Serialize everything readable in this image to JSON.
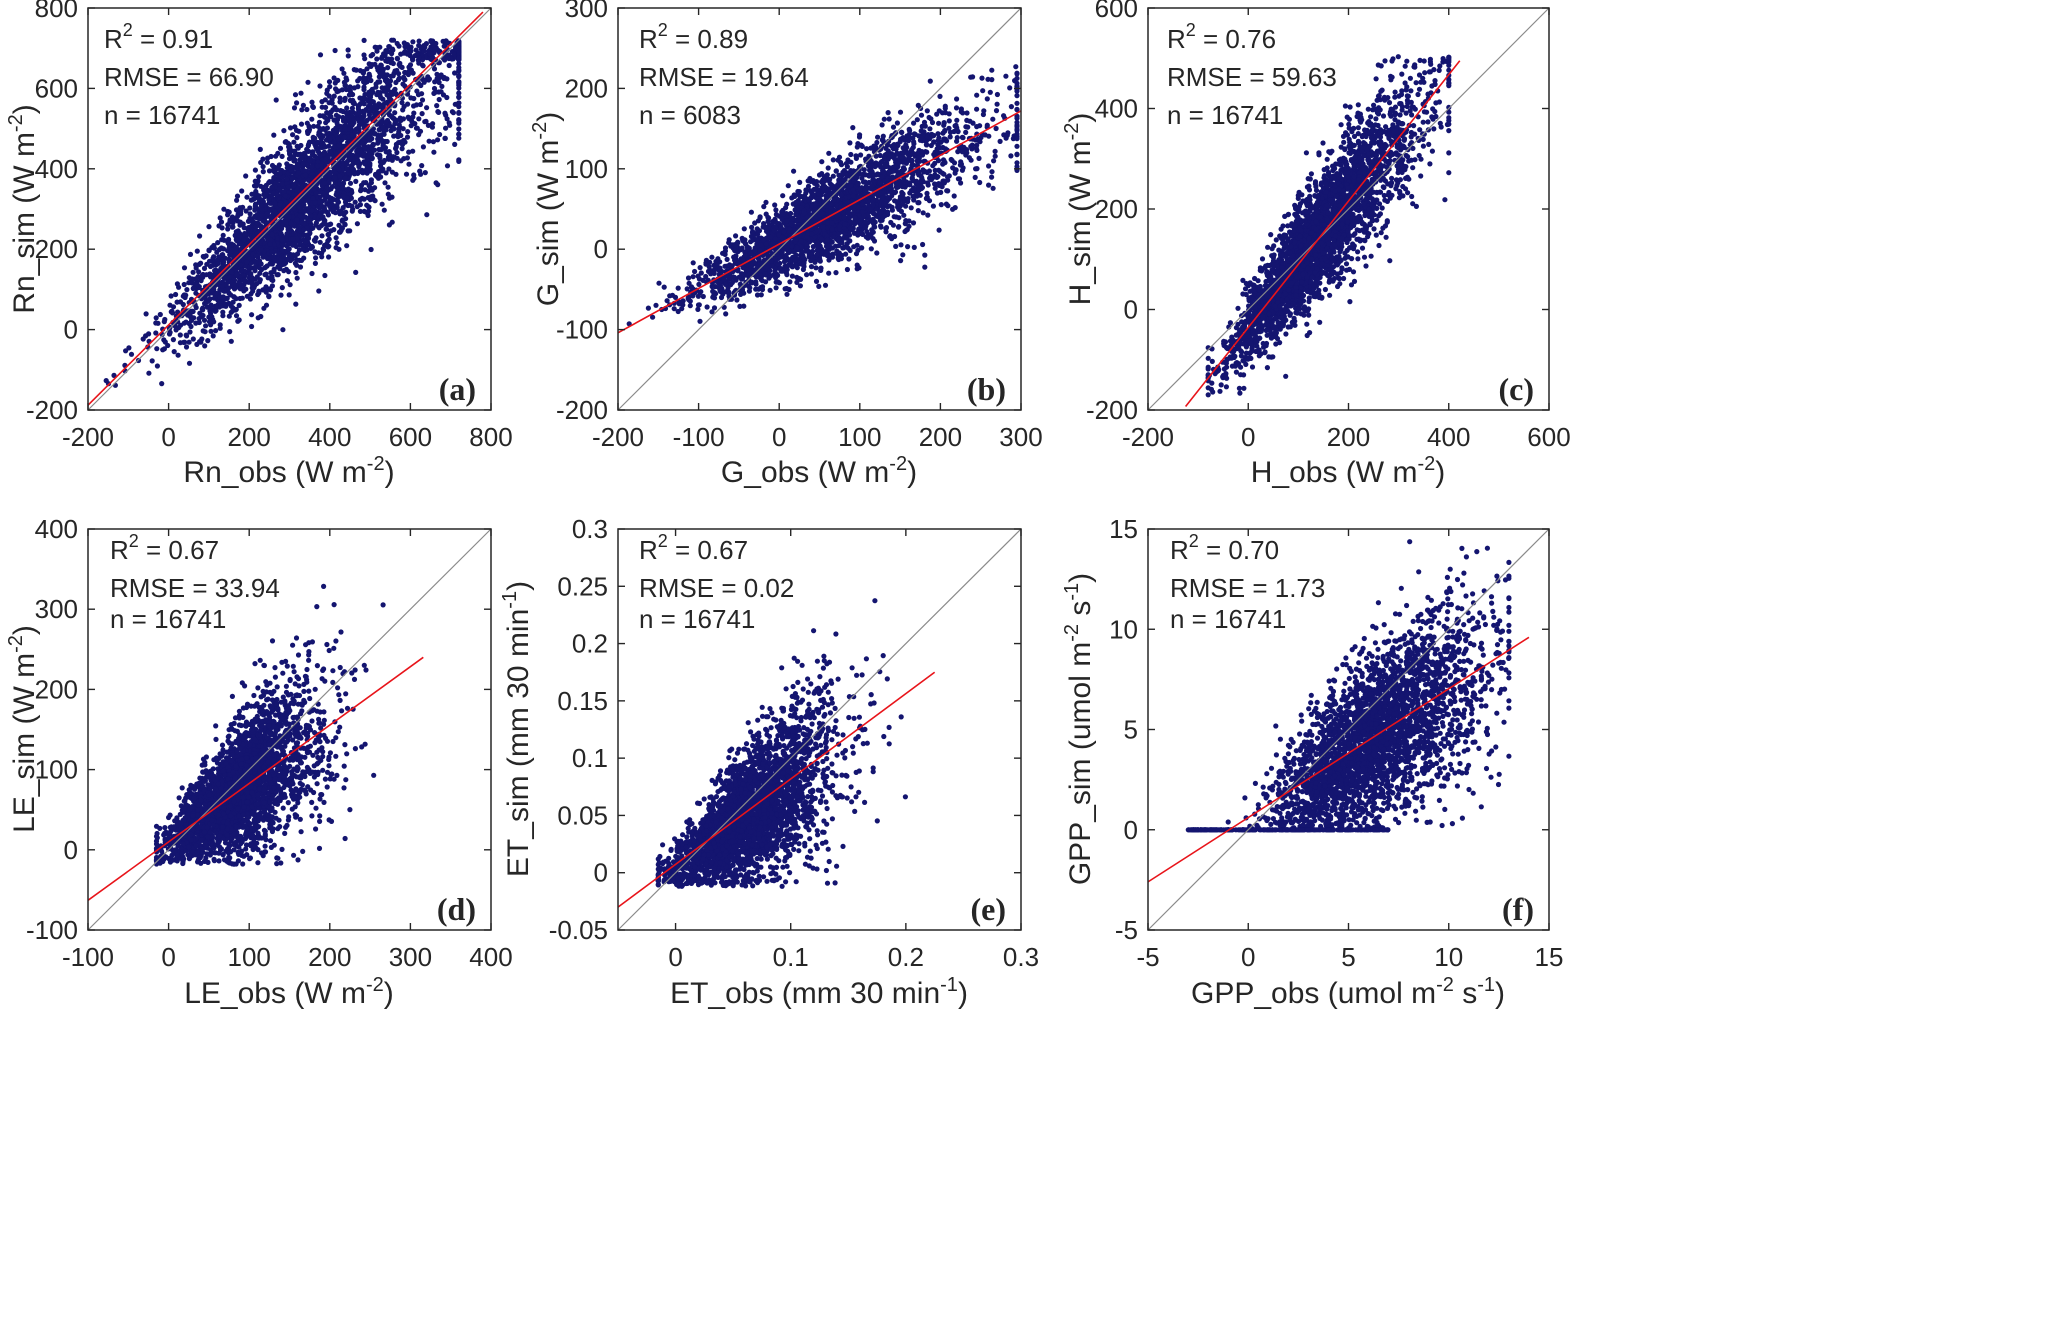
{
  "figure": {
    "colors": {
      "points": "#141570",
      "fit_line": "#e8141a",
      "one_to_one_line": "#8a8a8a",
      "axes": "#262626"
    }
  },
  "chart_data": [
    {
      "type": "scatter",
      "panel_label": "(a)",
      "xlabel": {
        "main": "Rn_obs (W m",
        "sup": "-2",
        "tail": ")"
      },
      "ylabel": {
        "main": "Rn_sim (W m",
        "sup": "-2",
        "tail": ")"
      },
      "xlim": [
        -200,
        800
      ],
      "ylim": [
        -200,
        800
      ],
      "xticks": [
        -200,
        0,
        200,
        400,
        600,
        800
      ],
      "yticks": [
        -200,
        0,
        200,
        400,
        600,
        800
      ],
      "xtick_labels": [
        "-200",
        "0",
        "200",
        "400",
        "600",
        "800"
      ],
      "ytick_labels": [
        "-200",
        "0",
        "200",
        "400",
        "600",
        "800"
      ],
      "stats": {
        "r2_label": "R",
        "r2_sup": "2",
        "r2_value": " = 0.91",
        "rmse": "RMSE = 66.90",
        "n": "n = 16741"
      },
      "fit_line": {
        "x": [
          -200,
          780
        ],
        "y": [
          -188,
          790
        ]
      },
      "one_to_one": [
        -200,
        800
      ],
      "cloud": {
        "count": 3200,
        "seed": 11,
        "x_range": [
          -180,
          720
        ],
        "x_center": 250,
        "x_spread": 220,
        "slope": 0.99,
        "intercept": 6,
        "noise_base": 25,
        "noise_scale": 0.12,
        "clip_y": [
          -150,
          720
        ]
      }
    },
    {
      "type": "scatter",
      "panel_label": "(b)",
      "xlabel": {
        "main": "G_obs (W m",
        "sup": "-2",
        "tail": ")"
      },
      "ylabel": {
        "main": "G_sim (W m",
        "sup": "-2",
        "tail": ")"
      },
      "xlim": [
        -200,
        300
      ],
      "ylim": [
        -200,
        300
      ],
      "xticks": [
        -200,
        -100,
        0,
        100,
        200,
        300
      ],
      "yticks": [
        -200,
        -100,
        0,
        100,
        200,
        300
      ],
      "xtick_labels": [
        "-200",
        "-100",
        "0",
        "100",
        "200",
        "300"
      ],
      "ytick_labels": [
        "-200",
        "-100",
        "0",
        "100",
        "200",
        "300"
      ],
      "stats": {
        "r2_label": "R",
        "r2_sup": "2",
        "r2_value": " = 0.89",
        "rmse": "RMSE = 19.64",
        "n": "n = 6083"
      },
      "fit_line": {
        "x": [
          -200,
          300
        ],
        "y": [
          -104,
          172
        ]
      },
      "one_to_one": [
        -200,
        300
      ],
      "cloud": {
        "count": 2600,
        "seed": 23,
        "x_range": [
          -195,
          295
        ],
        "x_center": 20,
        "x_spread": 110,
        "slope": 0.55,
        "intercept": 6,
        "noise_base": 12,
        "noise_scale": 0.06,
        "clip_y": [
          -150,
          235
        ]
      }
    },
    {
      "type": "scatter",
      "panel_label": "(c)",
      "xlabel": {
        "main": "H_obs (W m",
        "sup": "-2",
        "tail": ")"
      },
      "ylabel": {
        "main": "H_sim (W m",
        "sup": "-2",
        "tail": ")"
      },
      "xlim": [
        -200,
        600
      ],
      "ylim": [
        -200,
        600
      ],
      "xticks": [
        -200,
        0,
        200,
        400,
        600
      ],
      "yticks": [
        -200,
        0,
        200,
        400,
        600
      ],
      "xtick_labels": [
        "-200",
        "0",
        "200",
        "400",
        "600"
      ],
      "ytick_labels": [
        "-200",
        "0",
        "200",
        "400",
        "600"
      ],
      "stats": {
        "r2_label": "R",
        "r2_sup": "2",
        "r2_value": " = 0.76",
        "rmse": "RMSE = 59.63",
        "n": "n = 16741"
      },
      "fit_line": {
        "x": [
          -125,
          422
        ],
        "y": [
          -193,
          495
        ]
      },
      "one_to_one": [
        -200,
        600
      ],
      "cloud": {
        "count": 3200,
        "seed": 37,
        "x_range": [
          -80,
          400
        ],
        "x_center": 90,
        "x_spread": 120,
        "slope": 1.26,
        "intercept": -35,
        "noise_base": 30,
        "noise_scale": 0.12,
        "clip_y": [
          -180,
          505
        ]
      }
    },
    {
      "type": "scatter",
      "panel_label": "(d)",
      "xlabel": {
        "main": "LE_obs (W m",
        "sup": "-2",
        "tail": ")"
      },
      "ylabel": {
        "main": "LE_sim (W m",
        "sup": "-2",
        "tail": ")"
      },
      "xlim": [
        -100,
        400
      ],
      "ylim": [
        -100,
        400
      ],
      "xticks": [
        -100,
        0,
        100,
        200,
        300,
        400
      ],
      "yticks": [
        -100,
        0,
        100,
        200,
        300,
        400
      ],
      "xtick_labels": [
        "-100",
        "0",
        "100",
        "200",
        "300",
        "400"
      ],
      "ytick_labels": [
        "-100",
        "0",
        "100",
        "200",
        "300",
        "400"
      ],
      "stats": {
        "r2_label": "R",
        "r2_sup": "2",
        "r2_value": " = 0.67",
        "rmse": "RMSE = 33.94",
        "n": "n = 16741"
      },
      "fit_line": {
        "x": [
          -100,
          316
        ],
        "y": [
          -63,
          240
        ]
      },
      "one_to_one": [
        -100,
        400
      ],
      "cloud": {
        "count": 3000,
        "seed": 53,
        "x_range": [
          -15,
          300
        ],
        "x_center": 60,
        "x_spread": 60,
        "slope": 0.73,
        "intercept": 10,
        "noise_base": 12,
        "noise_scale": 0.25,
        "clip_y": [
          -18,
          400
        ]
      }
    },
    {
      "type": "scatter",
      "panel_label": "(e)",
      "xlabel": {
        "main": "ET_obs (mm 30 min",
        "sup": "-1",
        "tail": ")"
      },
      "ylabel": {
        "main": "ET_sim (mm 30 min",
        "sup": "-1",
        "tail": ")"
      },
      "xlim": [
        -0.05,
        0.3
      ],
      "ylim": [
        -0.05,
        0.3
      ],
      "xticks": [
        0,
        0.1,
        0.2,
        0.3
      ],
      "yticks": [
        -0.05,
        0,
        0.05,
        0.1,
        0.15,
        0.2,
        0.25,
        0.3
      ],
      "xtick_labels": [
        "0",
        "0.1",
        "0.2",
        "0.3"
      ],
      "ytick_labels": [
        "-0.05",
        "0",
        "0.05",
        "0.1",
        "0.15",
        "0.2",
        "0.25",
        "0.3"
      ],
      "stats": {
        "r2_label": "R",
        "r2_sup": "2",
        "r2_value": " = 0.67",
        "rmse": "RMSE = 0.02",
        "n": "n = 16741"
      },
      "fit_line": {
        "x": [
          -0.05,
          0.225
        ],
        "y": [
          -0.03,
          0.175
        ]
      },
      "one_to_one": [
        -0.05,
        0.3
      ],
      "cloud": {
        "count": 3000,
        "seed": 71,
        "x_range": [
          -0.015,
          0.21
        ],
        "x_center": 0.045,
        "x_spread": 0.045,
        "slope": 0.73,
        "intercept": 0.005,
        "noise_base": 0.008,
        "noise_scale": 0.25,
        "clip_y": [
          -0.012,
          0.298
        ]
      }
    },
    {
      "type": "scatter",
      "panel_label": "(f)",
      "xlabel": {
        "main": "GPP_obs (umol m",
        "sup": "-2",
        "tail": " s",
        "sup2": "-1",
        "tail2": ")"
      },
      "ylabel": {
        "main": "GPP_sim (umol m",
        "sup": "-2",
        "tail": " s",
        "sup2": "-1",
        "tail2": ")"
      },
      "xlim": [
        -5,
        15
      ],
      "ylim": [
        -5,
        15
      ],
      "xticks": [
        -5,
        0,
        5,
        10,
        15
      ],
      "yticks": [
        -5,
        0,
        5,
        10,
        15
      ],
      "xtick_labels": [
        "-5",
        "0",
        "5",
        "10",
        "15"
      ],
      "ytick_labels": [
        "-5",
        "0",
        "5",
        "10",
        "15"
      ],
      "stats": {
        "r2_label": "R",
        "r2_sup": "2",
        "r2_value": " = 0.70",
        "rmse": "RMSE = 1.73",
        "n": "n = 16741"
      },
      "fit_line": {
        "x": [
          -5,
          14
        ],
        "y": [
          -2.6,
          9.6
        ]
      },
      "one_to_one": [
        -5,
        15
      ],
      "cloud": {
        "count": 3000,
        "seed": 89,
        "x_range": [
          -1,
          13
        ],
        "x_center": 5,
        "x_spread": 3.2,
        "slope": 0.64,
        "intercept": 0.6,
        "noise_base": 0.9,
        "noise_scale": 0.15,
        "clip_y": [
          0,
          14.6
        ],
        "zero_line_x": [
          -3,
          7
        ],
        "zero_line_count": 260
      }
    }
  ]
}
